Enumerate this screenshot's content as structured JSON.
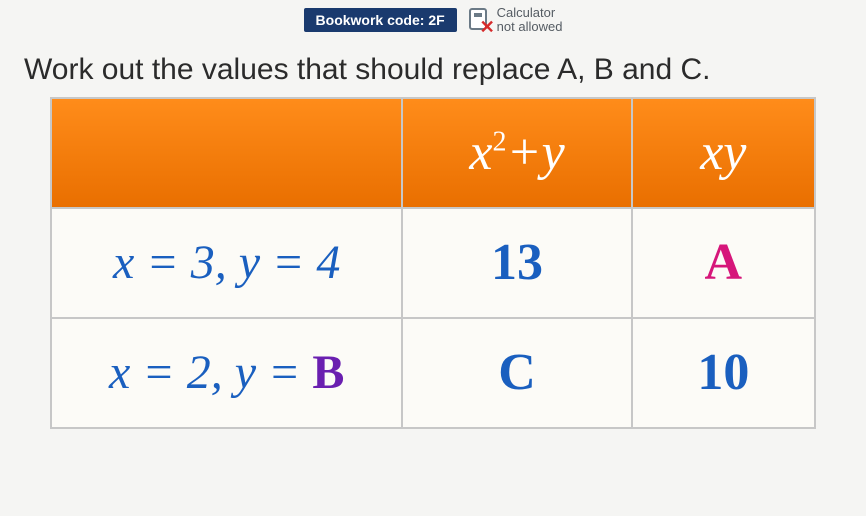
{
  "meta": {
    "bookwork_code": "Bookwork code: 2F",
    "calculator_line1": "Calculator",
    "calculator_line2": "not allowed"
  },
  "question_text": "Work out the values that should replace A, B and C.",
  "table": {
    "type": "table",
    "background_color": "#fcfbf7",
    "border_color": "#c7c7c7",
    "header_gradient": [
      "#ff8c1a",
      "#e96f00"
    ],
    "header_text_color": "#ffffff",
    "value_text_color": "#1a5fbf",
    "columns": [
      {
        "label": "",
        "width_pct": 46
      },
      {
        "label_html": "x²+y",
        "label_x": "x",
        "label_sup": "2",
        "label_rest": "+y",
        "width_pct": 30
      },
      {
        "label": "xy",
        "width_pct": 24
      }
    ],
    "rows": [
      {
        "label_prefix": "x = 3, y = ",
        "label_y_value": "4",
        "label_y_color": "#1a5fbf",
        "cells": [
          {
            "text": "13",
            "color": "#1a5fbf",
            "kind": "number"
          },
          {
            "text": "A",
            "color": "#d6167a",
            "kind": "unknown"
          }
        ]
      },
      {
        "label_prefix": "x = 2, y = ",
        "label_y_value": "B",
        "label_y_color": "#6a1fb0",
        "cells": [
          {
            "text": "C",
            "color": "#1a5fbf",
            "kind": "unknown"
          },
          {
            "text": "10",
            "color": "#1a5fbf",
            "kind": "number"
          }
        ]
      }
    ],
    "font_family": "Times New Roman",
    "header_font_size_pt": 40,
    "cell_font_size_pt": 40,
    "row_label_font_size_pt": 36
  }
}
